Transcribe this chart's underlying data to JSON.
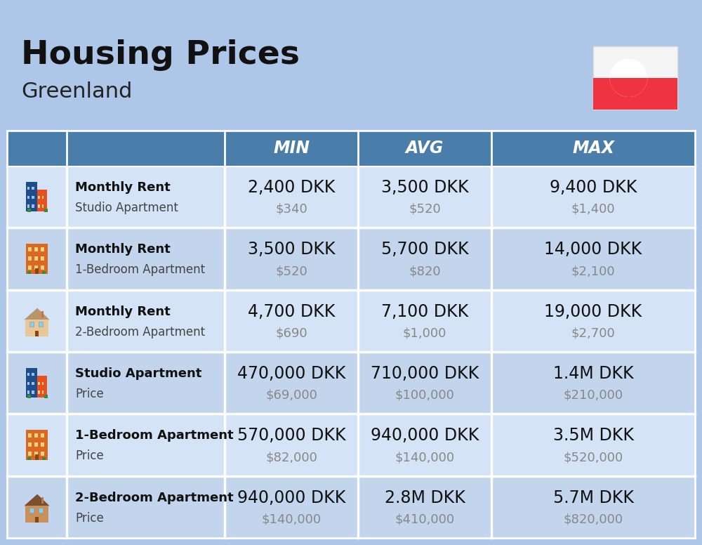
{
  "title": "Housing Prices",
  "subtitle": "Greenland",
  "background_color": "#aec6e8",
  "header_bg_color": "#4a7daa",
  "header_text_color": "#ffffff",
  "col_headers": [
    "MIN",
    "AVG",
    "MAX"
  ],
  "rows": [
    {
      "bold_label": "Monthly Rent",
      "sub_label": "Studio Apartment",
      "icon_type": "blue_red",
      "min_dkk": "2,400 DKK",
      "min_usd": "$340",
      "avg_dkk": "3,500 DKK",
      "avg_usd": "$520",
      "max_dkk": "9,400 DKK",
      "max_usd": "$1,400"
    },
    {
      "bold_label": "Monthly Rent",
      "sub_label": "1-Bedroom Apartment",
      "icon_type": "orange",
      "min_dkk": "3,500 DKK",
      "min_usd": "$520",
      "avg_dkk": "5,700 DKK",
      "avg_usd": "$820",
      "max_dkk": "14,000 DKK",
      "max_usd": "$2,100"
    },
    {
      "bold_label": "Monthly Rent",
      "sub_label": "2-Bedroom Apartment",
      "icon_type": "beige",
      "min_dkk": "4,700 DKK",
      "min_usd": "$690",
      "avg_dkk": "7,100 DKK",
      "avg_usd": "$1,000",
      "max_dkk": "19,000 DKK",
      "max_usd": "$2,700"
    },
    {
      "bold_label": "Studio Apartment",
      "sub_label": "Price",
      "icon_type": "blue_red",
      "min_dkk": "470,000 DKK",
      "min_usd": "$69,000",
      "avg_dkk": "710,000 DKK",
      "avg_usd": "$100,000",
      "max_dkk": "1.4M DKK",
      "max_usd": "$210,000"
    },
    {
      "bold_label": "1-Bedroom Apartment",
      "sub_label": "Price",
      "icon_type": "orange",
      "min_dkk": "570,000 DKK",
      "min_usd": "$82,000",
      "avg_dkk": "940,000 DKK",
      "avg_usd": "$140,000",
      "max_dkk": "3.5M DKK",
      "max_usd": "$520,000"
    },
    {
      "bold_label": "2-Bedroom Apartment",
      "sub_label": "Price",
      "icon_type": "brown",
      "min_dkk": "940,000 DKK",
      "min_usd": "$140,000",
      "avg_dkk": "2.8M DKK",
      "avg_usd": "$410,000",
      "max_dkk": "5.7M DKK",
      "max_usd": "$820,000"
    }
  ],
  "title_fontsize": 34,
  "subtitle_fontsize": 22,
  "header_fontsize": 17,
  "cell_main_fontsize": 17,
  "cell_sub_fontsize": 13,
  "label_bold_fontsize": 13,
  "label_sub_fontsize": 12
}
